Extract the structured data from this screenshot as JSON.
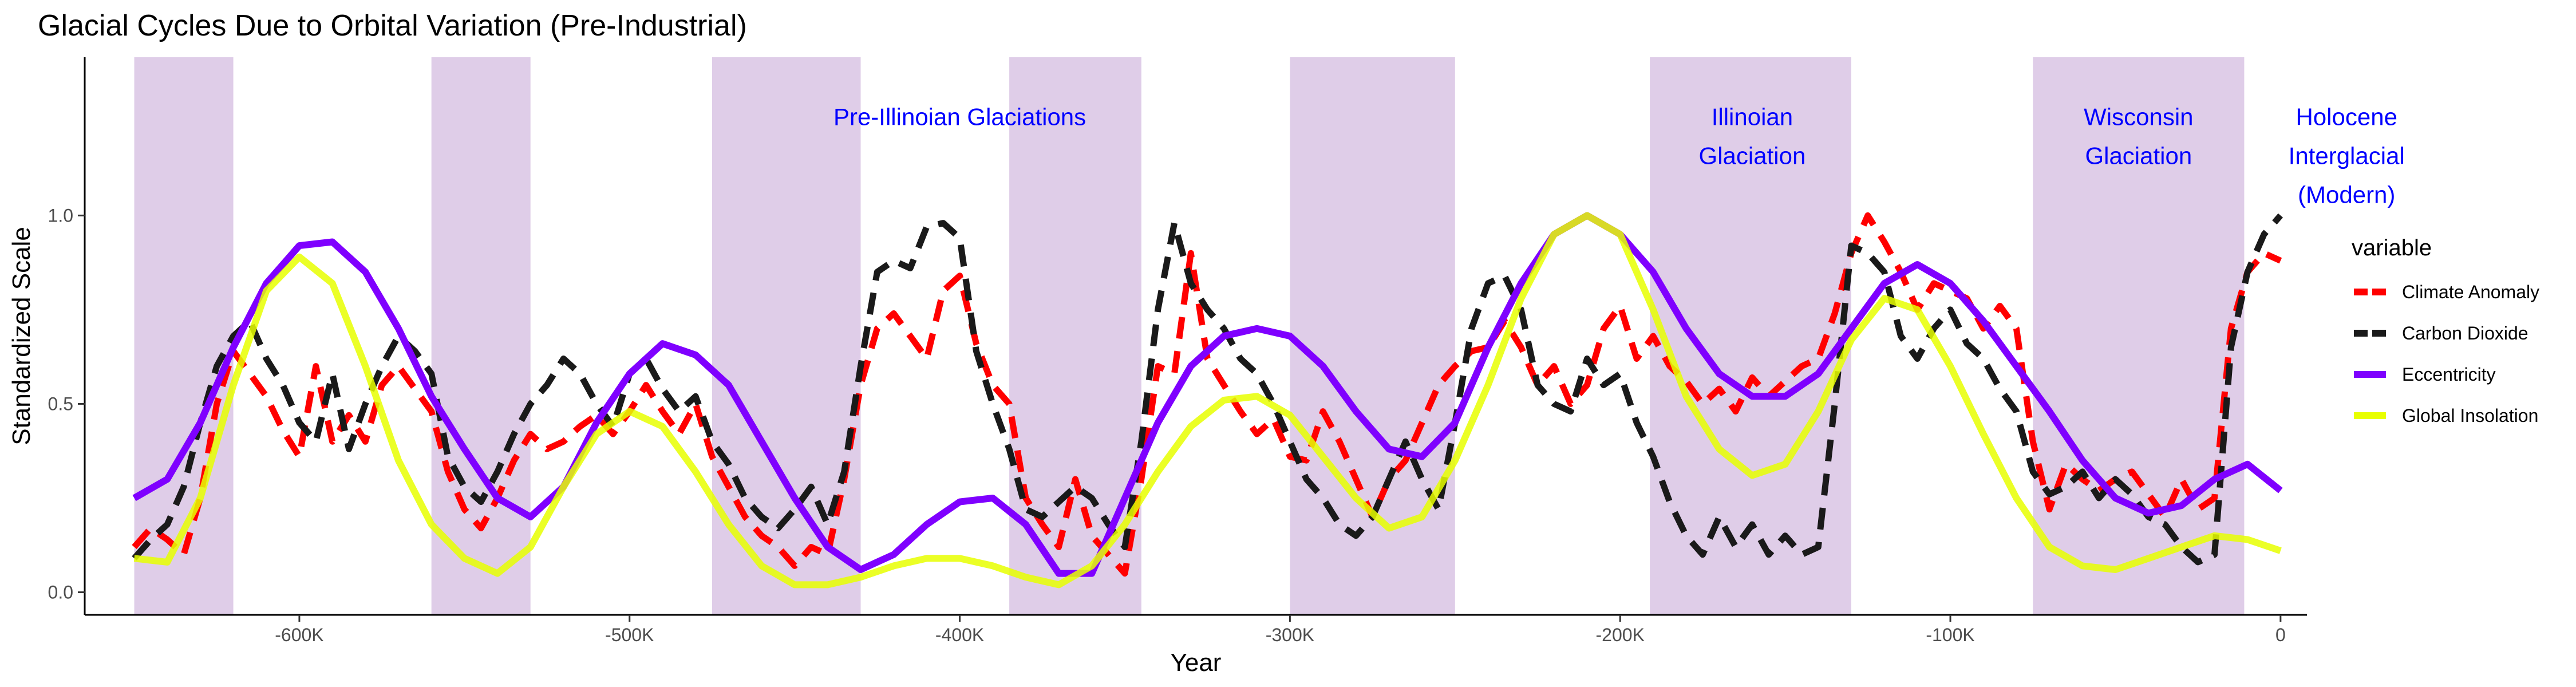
{
  "chart_data": {
    "type": "line",
    "title": "Glacial Cycles Due to Orbital Variation (Pre-Industrial)",
    "xlabel": "Year",
    "ylabel": "Standardized Scale",
    "xlim": [
      -665000,
      8000
    ],
    "ylim": [
      -0.06,
      1.42
    ],
    "x_ticks": [
      {
        "value": -600000,
        "label": "-600K"
      },
      {
        "value": -500000,
        "label": "-500K"
      },
      {
        "value": -400000,
        "label": "-400K"
      },
      {
        "value": -300000,
        "label": "-300K"
      },
      {
        "value": -200000,
        "label": "-200K"
      },
      {
        "value": -100000,
        "label": "-100K"
      },
      {
        "value": 0,
        "label": "0"
      }
    ],
    "y_ticks": [
      {
        "value": 0.0,
        "label": "0.0"
      },
      {
        "value": 0.5,
        "label": "0.5"
      },
      {
        "value": 1.0,
        "label": "1.0"
      }
    ],
    "grid": false,
    "legend_position": "right",
    "legend_title": "variable",
    "shaded_regions": [
      {
        "start": -650000,
        "end": -620000,
        "color": "#dfcde8"
      },
      {
        "start": -560000,
        "end": -530000,
        "color": "#dfcde8"
      },
      {
        "start": -475000,
        "end": -430000,
        "color": "#dfcde8"
      },
      {
        "start": -385000,
        "end": -345000,
        "color": "#dfcde8"
      },
      {
        "start": -300000,
        "end": -250000,
        "color": "#dfcde8"
      },
      {
        "start": -191000,
        "end": -130000,
        "color": "#dfcde8"
      },
      {
        "start": -75000,
        "end": -11000,
        "color": "#dfcde8"
      }
    ],
    "annotations": [
      {
        "x": -400000,
        "y": 1.24,
        "lines": [
          "Pre-Illinoian Glaciations"
        ]
      },
      {
        "x": -160000,
        "y": 1.24,
        "lines": [
          "Illinoian",
          "Glaciation"
        ]
      },
      {
        "x": -43000,
        "y": 1.24,
        "lines": [
          "Wisconsin",
          "Glaciation"
        ]
      },
      {
        "x": 20000,
        "y": 1.24,
        "lines": [
          "Holocene",
          "Interglacial",
          "(Modern)"
        ]
      }
    ],
    "series": [
      {
        "name": "Climate Anomaly",
        "color": "#ff0000",
        "dashed": true,
        "x": [
          -650000,
          -645000,
          -640000,
          -635000,
          -630000,
          -625000,
          -620000,
          -615000,
          -610000,
          -605000,
          -600000,
          -595000,
          -590000,
          -585000,
          -580000,
          -575000,
          -570000,
          -565000,
          -560000,
          -555000,
          -550000,
          -545000,
          -540000,
          -535000,
          -530000,
          -525000,
          -520000,
          -515000,
          -510000,
          -505000,
          -500000,
          -495000,
          -490000,
          -485000,
          -480000,
          -475000,
          -470000,
          -465000,
          -460000,
          -455000,
          -450000,
          -445000,
          -440000,
          -435000,
          -430000,
          -425000,
          -420000,
          -415000,
          -410000,
          -405000,
          -400000,
          -395000,
          -390000,
          -385000,
          -380000,
          -375000,
          -370000,
          -365000,
          -360000,
          -355000,
          -350000,
          -345000,
          -340000,
          -335000,
          -330000,
          -325000,
          -320000,
          -315000,
          -310000,
          -305000,
          -300000,
          -295000,
          -290000,
          -285000,
          -280000,
          -275000,
          -270000,
          -265000,
          -260000,
          -255000,
          -250000,
          -245000,
          -240000,
          -235000,
          -230000,
          -225000,
          -220000,
          -215000,
          -210000,
          -205000,
          -200000,
          -195000,
          -190000,
          -185000,
          -180000,
          -175000,
          -170000,
          -165000,
          -160000,
          -155000,
          -150000,
          -145000,
          -140000,
          -135000,
          -130000,
          -125000,
          -120000,
          -115000,
          -110000,
          -105000,
          -100000,
          -95000,
          -90000,
          -85000,
          -80000,
          -75000,
          -70000,
          -65000,
          -60000,
          -55000,
          -50000,
          -45000,
          -40000,
          -35000,
          -30000,
          -25000,
          -20000,
          -15000,
          -10000,
          -5000,
          0
        ],
        "y": [
          0.12,
          0.17,
          0.14,
          0.1,
          0.25,
          0.5,
          0.64,
          0.58,
          0.52,
          0.43,
          0.36,
          0.6,
          0.4,
          0.47,
          0.4,
          0.55,
          0.6,
          0.54,
          0.48,
          0.32,
          0.22,
          0.17,
          0.25,
          0.35,
          0.42,
          0.38,
          0.4,
          0.44,
          0.47,
          0.42,
          0.48,
          0.55,
          0.48,
          0.42,
          0.5,
          0.36,
          0.28,
          0.2,
          0.15,
          0.12,
          0.07,
          0.12,
          0.1,
          0.3,
          0.55,
          0.7,
          0.74,
          0.68,
          0.62,
          0.8,
          0.84,
          0.66,
          0.55,
          0.5,
          0.25,
          0.18,
          0.12,
          0.3,
          0.15,
          0.1,
          0.05,
          0.3,
          0.6,
          0.58,
          0.9,
          0.62,
          0.55,
          0.48,
          0.42,
          0.46,
          0.36,
          0.35,
          0.48,
          0.4,
          0.3,
          0.2,
          0.3,
          0.35,
          0.45,
          0.55,
          0.6,
          0.64,
          0.65,
          0.72,
          0.65,
          0.55,
          0.6,
          0.5,
          0.55,
          0.7,
          0.76,
          0.62,
          0.68,
          0.6,
          0.56,
          0.5,
          0.54,
          0.48,
          0.57,
          0.52,
          0.56,
          0.6,
          0.62,
          0.74,
          0.9,
          1.0,
          0.93,
          0.85,
          0.75,
          0.82,
          0.8,
          0.78,
          0.7,
          0.76,
          0.7,
          0.4,
          0.22,
          0.34,
          0.3,
          0.27,
          0.3,
          0.32,
          0.26,
          0.2,
          0.3,
          0.22,
          0.25,
          0.7,
          0.85,
          0.9,
          0.88
        ]
      },
      {
        "name": "Carbon Dioxide",
        "color": "#1a1a1a",
        "dashed": true,
        "x": [
          -650000,
          -645000,
          -640000,
          -635000,
          -630000,
          -625000,
          -620000,
          -615000,
          -610000,
          -605000,
          -600000,
          -595000,
          -590000,
          -585000,
          -580000,
          -575000,
          -570000,
          -565000,
          -560000,
          -555000,
          -550000,
          -545000,
          -540000,
          -535000,
          -530000,
          -525000,
          -520000,
          -515000,
          -510000,
          -505000,
          -500000,
          -495000,
          -490000,
          -485000,
          -480000,
          -475000,
          -470000,
          -465000,
          -460000,
          -455000,
          -450000,
          -445000,
          -440000,
          -435000,
          -430000,
          -425000,
          -420000,
          -415000,
          -410000,
          -405000,
          -400000,
          -395000,
          -390000,
          -385000,
          -380000,
          -375000,
          -370000,
          -365000,
          -360000,
          -355000,
          -350000,
          -345000,
          -340000,
          -335000,
          -330000,
          -325000,
          -320000,
          -315000,
          -310000,
          -305000,
          -300000,
          -295000,
          -290000,
          -285000,
          -280000,
          -275000,
          -270000,
          -265000,
          -260000,
          -255000,
          -250000,
          -245000,
          -240000,
          -235000,
          -230000,
          -225000,
          -220000,
          -215000,
          -210000,
          -205000,
          -200000,
          -195000,
          -190000,
          -185000,
          -180000,
          -175000,
          -170000,
          -165000,
          -160000,
          -155000,
          -150000,
          -145000,
          -140000,
          -135000,
          -130000,
          -125000,
          -120000,
          -115000,
          -110000,
          -105000,
          -100000,
          -95000,
          -90000,
          -85000,
          -80000,
          -75000,
          -70000,
          -65000,
          -60000,
          -55000,
          -50000,
          -45000,
          -40000,
          -35000,
          -30000,
          -25000,
          -20000,
          -15000,
          -10000,
          -5000,
          0
        ],
        "y": [
          0.09,
          0.14,
          0.18,
          0.28,
          0.45,
          0.6,
          0.68,
          0.72,
          0.62,
          0.55,
          0.45,
          0.4,
          0.58,
          0.38,
          0.5,
          0.6,
          0.68,
          0.64,
          0.58,
          0.36,
          0.28,
          0.24,
          0.32,
          0.42,
          0.5,
          0.55,
          0.62,
          0.58,
          0.5,
          0.44,
          0.58,
          0.62,
          0.54,
          0.48,
          0.52,
          0.4,
          0.34,
          0.25,
          0.2,
          0.17,
          0.22,
          0.28,
          0.18,
          0.32,
          0.6,
          0.85,
          0.88,
          0.86,
          0.97,
          0.98,
          0.94,
          0.64,
          0.5,
          0.38,
          0.22,
          0.2,
          0.24,
          0.28,
          0.25,
          0.18,
          0.12,
          0.4,
          0.75,
          0.98,
          0.82,
          0.75,
          0.7,
          0.62,
          0.58,
          0.5,
          0.4,
          0.3,
          0.25,
          0.18,
          0.15,
          0.2,
          0.3,
          0.4,
          0.3,
          0.22,
          0.45,
          0.7,
          0.82,
          0.84,
          0.75,
          0.55,
          0.5,
          0.48,
          0.62,
          0.55,
          0.58,
          0.45,
          0.36,
          0.24,
          0.15,
          0.1,
          0.2,
          0.12,
          0.18,
          0.1,
          0.15,
          0.1,
          0.12,
          0.5,
          0.92,
          0.9,
          0.85,
          0.68,
          0.62,
          0.7,
          0.75,
          0.66,
          0.62,
          0.54,
          0.48,
          0.32,
          0.26,
          0.28,
          0.32,
          0.25,
          0.3,
          0.26,
          0.2,
          0.18,
          0.12,
          0.08,
          0.1,
          0.65,
          0.85,
          0.95,
          1.0
        ]
      },
      {
        "name": "Eccentricity",
        "color": "#7f00ff",
        "dashed": false,
        "x": [
          -650000,
          -640000,
          -630000,
          -620000,
          -610000,
          -600000,
          -590000,
          -580000,
          -570000,
          -560000,
          -550000,
          -540000,
          -530000,
          -520000,
          -510000,
          -500000,
          -490000,
          -480000,
          -470000,
          -460000,
          -450000,
          -440000,
          -430000,
          -420000,
          -410000,
          -400000,
          -390000,
          -380000,
          -370000,
          -360000,
          -350000,
          -340000,
          -330000,
          -320000,
          -310000,
          -300000,
          -290000,
          -280000,
          -270000,
          -260000,
          -250000,
          -240000,
          -230000,
          -220000,
          -210000,
          -200000,
          -190000,
          -180000,
          -170000,
          -160000,
          -150000,
          -140000,
          -130000,
          -120000,
          -110000,
          -100000,
          -90000,
          -80000,
          -70000,
          -60000,
          -50000,
          -40000,
          -30000,
          -20000,
          -10000,
          0
        ],
        "y": [
          0.25,
          0.3,
          0.45,
          0.65,
          0.82,
          0.92,
          0.93,
          0.85,
          0.7,
          0.52,
          0.38,
          0.25,
          0.2,
          0.28,
          0.45,
          0.58,
          0.66,
          0.63,
          0.55,
          0.4,
          0.25,
          0.12,
          0.06,
          0.1,
          0.18,
          0.24,
          0.25,
          0.18,
          0.05,
          0.05,
          0.25,
          0.45,
          0.6,
          0.68,
          0.7,
          0.68,
          0.6,
          0.48,
          0.38,
          0.36,
          0.45,
          0.65,
          0.82,
          0.95,
          1.0,
          0.95,
          0.85,
          0.7,
          0.58,
          0.52,
          0.52,
          0.58,
          0.7,
          0.82,
          0.87,
          0.82,
          0.72,
          0.6,
          0.48,
          0.35,
          0.25,
          0.21,
          0.23,
          0.3,
          0.34,
          0.27
        ]
      },
      {
        "name": "Global Insolation",
        "color": "#e8ff00",
        "dashed": false,
        "x": [
          -650000,
          -640000,
          -630000,
          -620000,
          -610000,
          -600000,
          -590000,
          -580000,
          -570000,
          -560000,
          -550000,
          -540000,
          -530000,
          -520000,
          -510000,
          -500000,
          -490000,
          -480000,
          -470000,
          -460000,
          -450000,
          -440000,
          -430000,
          -420000,
          -410000,
          -400000,
          -390000,
          -380000,
          -370000,
          -360000,
          -350000,
          -340000,
          -330000,
          -320000,
          -310000,
          -300000,
          -290000,
          -280000,
          -270000,
          -260000,
          -250000,
          -240000,
          -230000,
          -220000,
          -210000,
          -200000,
          -190000,
          -180000,
          -170000,
          -160000,
          -150000,
          -140000,
          -130000,
          -120000,
          -110000,
          -100000,
          -90000,
          -80000,
          -70000,
          -60000,
          -50000,
          -40000,
          -30000,
          -20000,
          -10000,
          0
        ],
        "y": [
          0.09,
          0.08,
          0.25,
          0.55,
          0.8,
          0.89,
          0.82,
          0.6,
          0.35,
          0.18,
          0.09,
          0.05,
          0.12,
          0.28,
          0.42,
          0.48,
          0.44,
          0.32,
          0.18,
          0.07,
          0.02,
          0.02,
          0.04,
          0.07,
          0.09,
          0.09,
          0.07,
          0.04,
          0.02,
          0.07,
          0.18,
          0.32,
          0.44,
          0.51,
          0.52,
          0.47,
          0.36,
          0.25,
          0.17,
          0.2,
          0.35,
          0.55,
          0.78,
          0.95,
          1.0,
          0.95,
          0.75,
          0.52,
          0.38,
          0.31,
          0.34,
          0.48,
          0.67,
          0.78,
          0.75,
          0.6,
          0.42,
          0.25,
          0.12,
          0.07,
          0.06,
          0.09,
          0.12,
          0.15,
          0.14,
          0.11
        ]
      }
    ]
  }
}
